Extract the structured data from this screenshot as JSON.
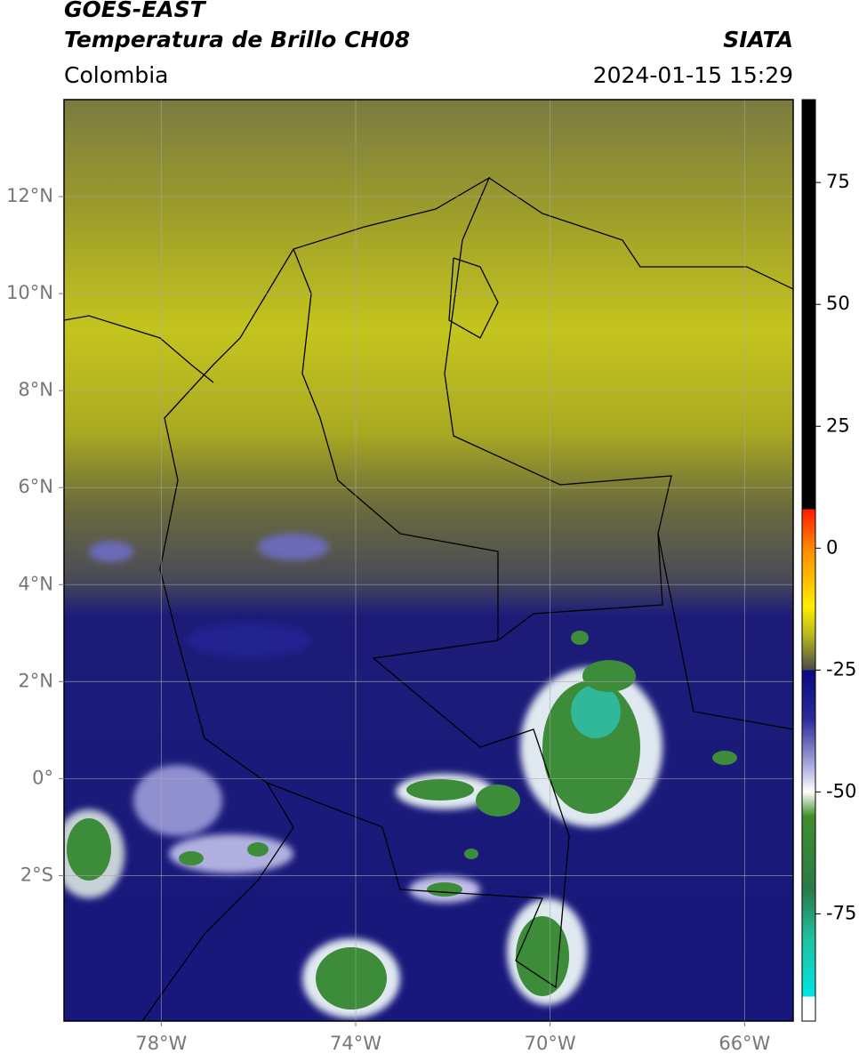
{
  "header": {
    "title": "GOES-EAST",
    "subtitle": "Temperatura de Brillo CH08",
    "region": "Colombia",
    "source": "SIATA",
    "timestamp": "2024-01-15 15:29"
  },
  "map": {
    "xlim": [
      -80,
      -65
    ],
    "ylim": [
      -5,
      14
    ],
    "xticks": [
      {
        "value": -78,
        "label": "78°W"
      },
      {
        "value": -74,
        "label": "74°W"
      },
      {
        "value": -70,
        "label": "70°W"
      },
      {
        "value": -66,
        "label": "66°W"
      }
    ],
    "yticks": [
      {
        "value": 12,
        "label": "12°N"
      },
      {
        "value": 10,
        "label": "10°N"
      },
      {
        "value": 8,
        "label": "8°N"
      },
      {
        "value": 6,
        "label": "6°N"
      },
      {
        "value": 4,
        "label": "4°N"
      },
      {
        "value": 2,
        "label": "2°N"
      },
      {
        "value": 0,
        "label": "0°"
      },
      {
        "value": -2,
        "label": "2°S"
      }
    ],
    "grid": true
  },
  "colorbar": {
    "lim": [
      -97,
      92
    ],
    "ticks": [
      75,
      50,
      25,
      0,
      -25,
      -50,
      -75
    ],
    "stops": [
      {
        "value": 92,
        "color": "#000000"
      },
      {
        "value": 8,
        "color": "#000000"
      },
      {
        "value": 8,
        "color": "#ff1a00"
      },
      {
        "value": 0,
        "color": "#ff8800"
      },
      {
        "value": -12,
        "color": "#ffee00"
      },
      {
        "value": -18,
        "color": "#b5b520"
      },
      {
        "value": -25,
        "color": "#4a4a4a"
      },
      {
        "value": -25,
        "color": "#0a0a80"
      },
      {
        "value": -35,
        "color": "#2a2a9a"
      },
      {
        "value": -45,
        "color": "#b0b0e0"
      },
      {
        "value": -50,
        "color": "#ffffff"
      },
      {
        "value": -55,
        "color": "#3f8f2a"
      },
      {
        "value": -70,
        "color": "#2a7a4a"
      },
      {
        "value": -80,
        "color": "#20c0a0"
      },
      {
        "value": -92,
        "color": "#00e5e5"
      },
      {
        "value": -92,
        "color": "#ffffff"
      },
      {
        "value": -97,
        "color": "#ffffff"
      }
    ]
  }
}
